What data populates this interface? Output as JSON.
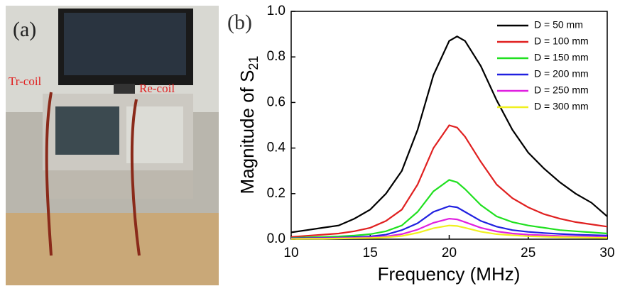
{
  "photo": {
    "label": "(a)",
    "annotations": [
      "Tr-coil",
      "Re-coil"
    ]
  },
  "chart_data": {
    "type": "line",
    "panel_label": "(b)",
    "xlabel": "Frequency (MHz)",
    "ylabel": "Magnitude of S",
    "ylabel_subscript": "21",
    "x": [
      10,
      11,
      12,
      13,
      14,
      15,
      16,
      17,
      18,
      19,
      20,
      20.5,
      21,
      22,
      23,
      24,
      25,
      26,
      27,
      28,
      29,
      30
    ],
    "series": [
      {
        "name": "D =  50 mm",
        "color": "#000000",
        "values": [
          0.03,
          0.04,
          0.05,
          0.06,
          0.09,
          0.13,
          0.2,
          0.3,
          0.48,
          0.72,
          0.87,
          0.89,
          0.87,
          0.76,
          0.61,
          0.48,
          0.38,
          0.31,
          0.25,
          0.2,
          0.16,
          0.1
        ]
      },
      {
        "name": "D = 100 mm",
        "color": "#e02020",
        "values": [
          0.01,
          0.015,
          0.02,
          0.025,
          0.035,
          0.05,
          0.08,
          0.13,
          0.24,
          0.4,
          0.5,
          0.49,
          0.45,
          0.34,
          0.24,
          0.18,
          0.14,
          0.11,
          0.09,
          0.075,
          0.065,
          0.055
        ]
      },
      {
        "name": "D = 150 mm",
        "color": "#20e020",
        "values": [
          0.005,
          0.008,
          0.01,
          0.012,
          0.016,
          0.022,
          0.035,
          0.06,
          0.12,
          0.21,
          0.26,
          0.25,
          0.22,
          0.15,
          0.1,
          0.075,
          0.06,
          0.05,
          0.04,
          0.035,
          0.03,
          0.025
        ]
      },
      {
        "name": "D = 200 mm",
        "color": "#2020e0",
        "values": [
          0.004,
          0.005,
          0.006,
          0.007,
          0.009,
          0.012,
          0.02,
          0.04,
          0.07,
          0.12,
          0.145,
          0.14,
          0.12,
          0.08,
          0.055,
          0.04,
          0.032,
          0.027,
          0.023,
          0.02,
          0.018,
          0.016
        ]
      },
      {
        "name": "D = 250 mm",
        "color": "#e020e0",
        "values": [
          0.002,
          0.003,
          0.004,
          0.005,
          0.006,
          0.008,
          0.012,
          0.022,
          0.042,
          0.072,
          0.09,
          0.087,
          0.075,
          0.05,
          0.034,
          0.025,
          0.02,
          0.017,
          0.014,
          0.012,
          0.011,
          0.01
        ]
      },
      {
        "name": "D = 300 mm",
        "color": "#f0f020",
        "values": [
          0.001,
          0.002,
          0.002,
          0.003,
          0.004,
          0.005,
          0.008,
          0.014,
          0.028,
          0.048,
          0.06,
          0.058,
          0.05,
          0.033,
          0.022,
          0.017,
          0.013,
          0.011,
          0.009,
          0.008,
          0.007,
          0.006
        ]
      }
    ],
    "xlim": [
      10,
      30
    ],
    "xticks": [
      10,
      15,
      20,
      25,
      30
    ],
    "ylim": [
      0,
      1
    ],
    "yticks": [
      {
        "value": 0,
        "label": "0.0"
      },
      0.2,
      0.4,
      0.6,
      0.8,
      {
        "value": 1,
        "label": "1.0"
      }
    ],
    "legend": "upper right"
  }
}
